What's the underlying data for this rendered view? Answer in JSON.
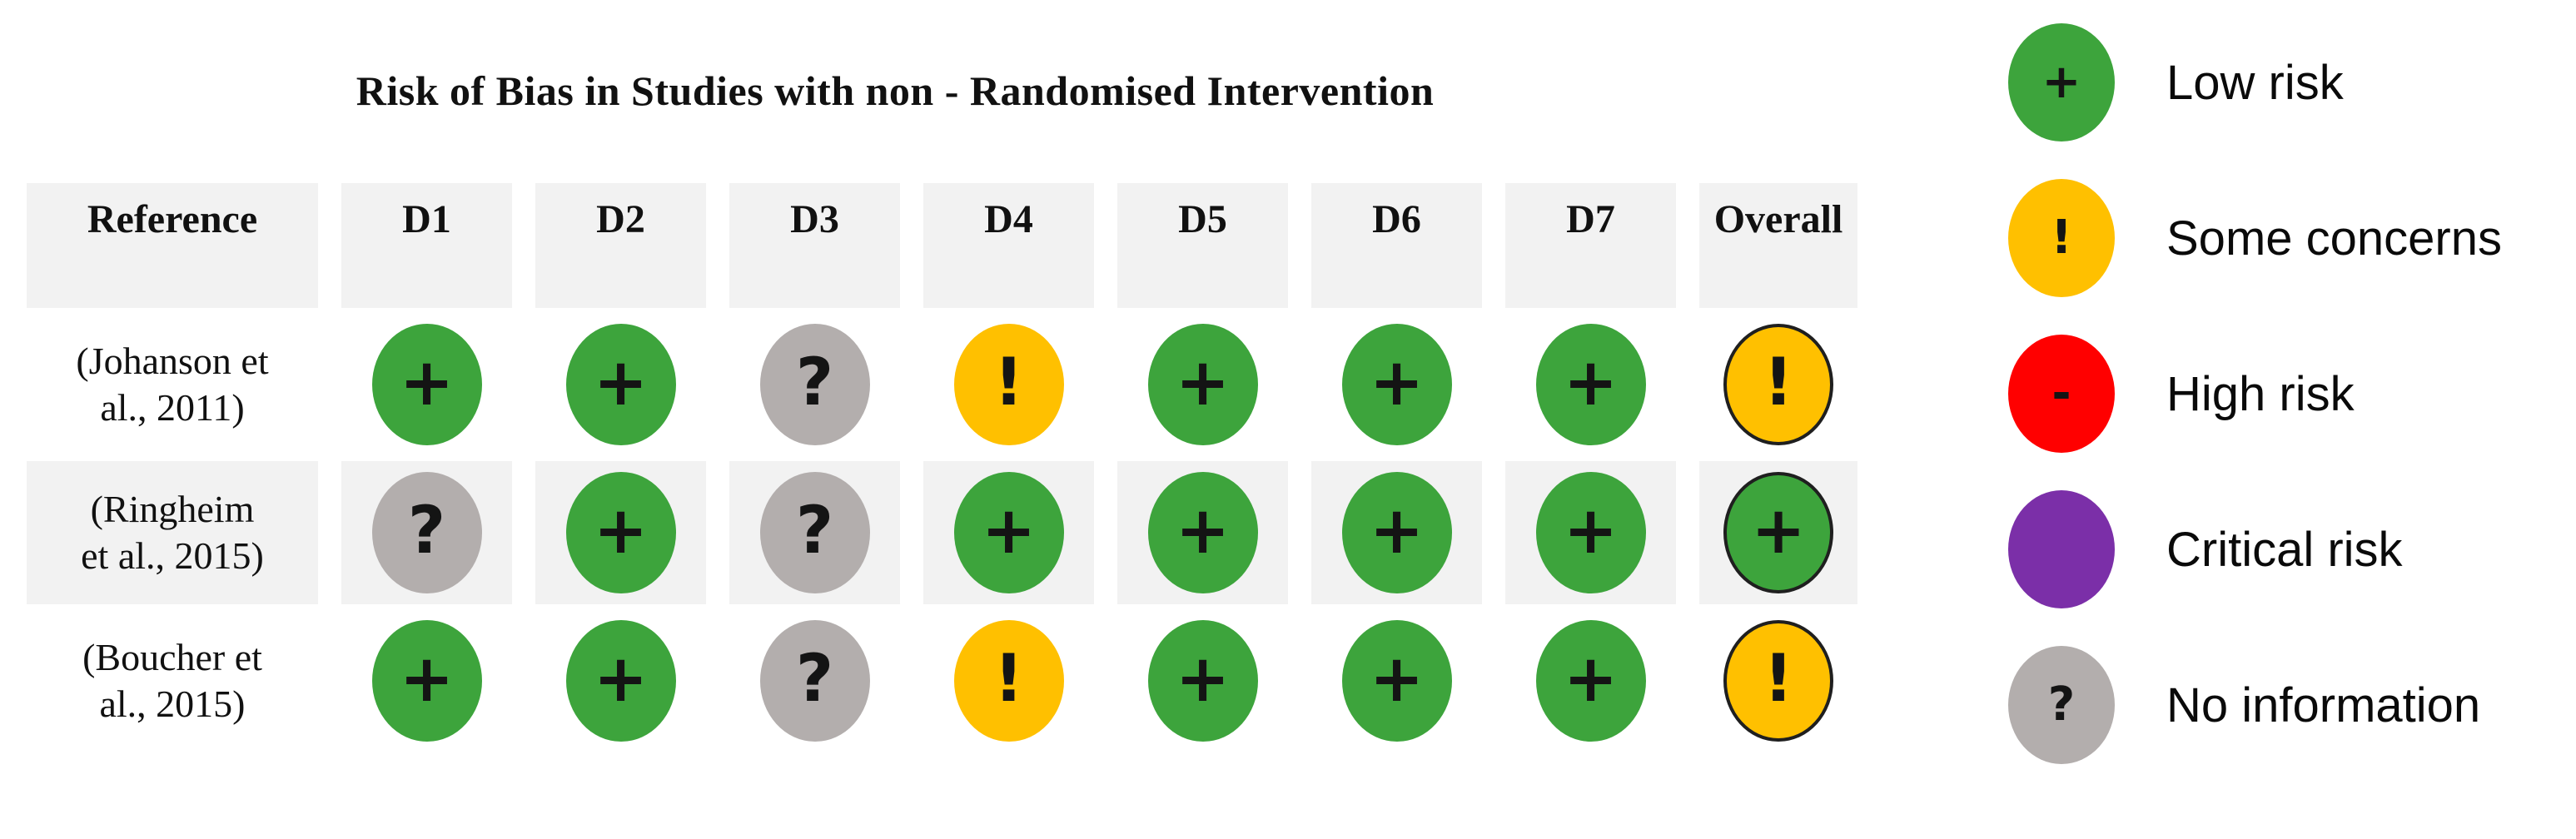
{
  "chart_data": {
    "type": "table",
    "title": "Risk of Bias in Studies with non - Randomised Intervention",
    "columns": [
      "Reference",
      "D1",
      "D2",
      "D3",
      "D4",
      "D5",
      "D6",
      "D7",
      "Overall"
    ],
    "rows": [
      {
        "reference": "(Johanson et al., 2011)",
        "reference_lines": [
          "(Johanson et",
          "al., 2011)"
        ],
        "judgements": [
          "low",
          "low",
          "none",
          "some",
          "low",
          "low",
          "low",
          "some"
        ]
      },
      {
        "reference": "(Ringheim et al., 2015)",
        "reference_lines": [
          "(Ringheim",
          "et al., 2015)"
        ],
        "judgements": [
          "none",
          "low",
          "none",
          "low",
          "low",
          "low",
          "low",
          "low"
        ]
      },
      {
        "reference": "(Boucher et al., 2015)",
        "reference_lines": [
          "(Boucher et",
          "al., 2015)"
        ],
        "judgements": [
          "low",
          "low",
          "none",
          "some",
          "low",
          "low",
          "low",
          "some"
        ]
      }
    ],
    "overall_column_outlined": true,
    "legend": [
      {
        "key": "low",
        "symbol": "+",
        "label": "Low risk",
        "color": "#3DA43C"
      },
      {
        "key": "some",
        "symbol": "!",
        "label": "Some concerns",
        "color": "#FFC000"
      },
      {
        "key": "high",
        "symbol": "-",
        "label": "High risk",
        "color": "#FF0000"
      },
      {
        "key": "critical",
        "symbol": "",
        "label": "Critical risk",
        "color": "#7B2FA8"
      },
      {
        "key": "none",
        "symbol": "?",
        "label": "No information",
        "color": "#B3AEAD"
      }
    ],
    "layout": {
      "header_background": "#F2F2F2",
      "striped_row_background": "#F2F2F2",
      "plain_row_background": "#FFFFFF",
      "striped_row_indices": [
        1
      ]
    }
  }
}
